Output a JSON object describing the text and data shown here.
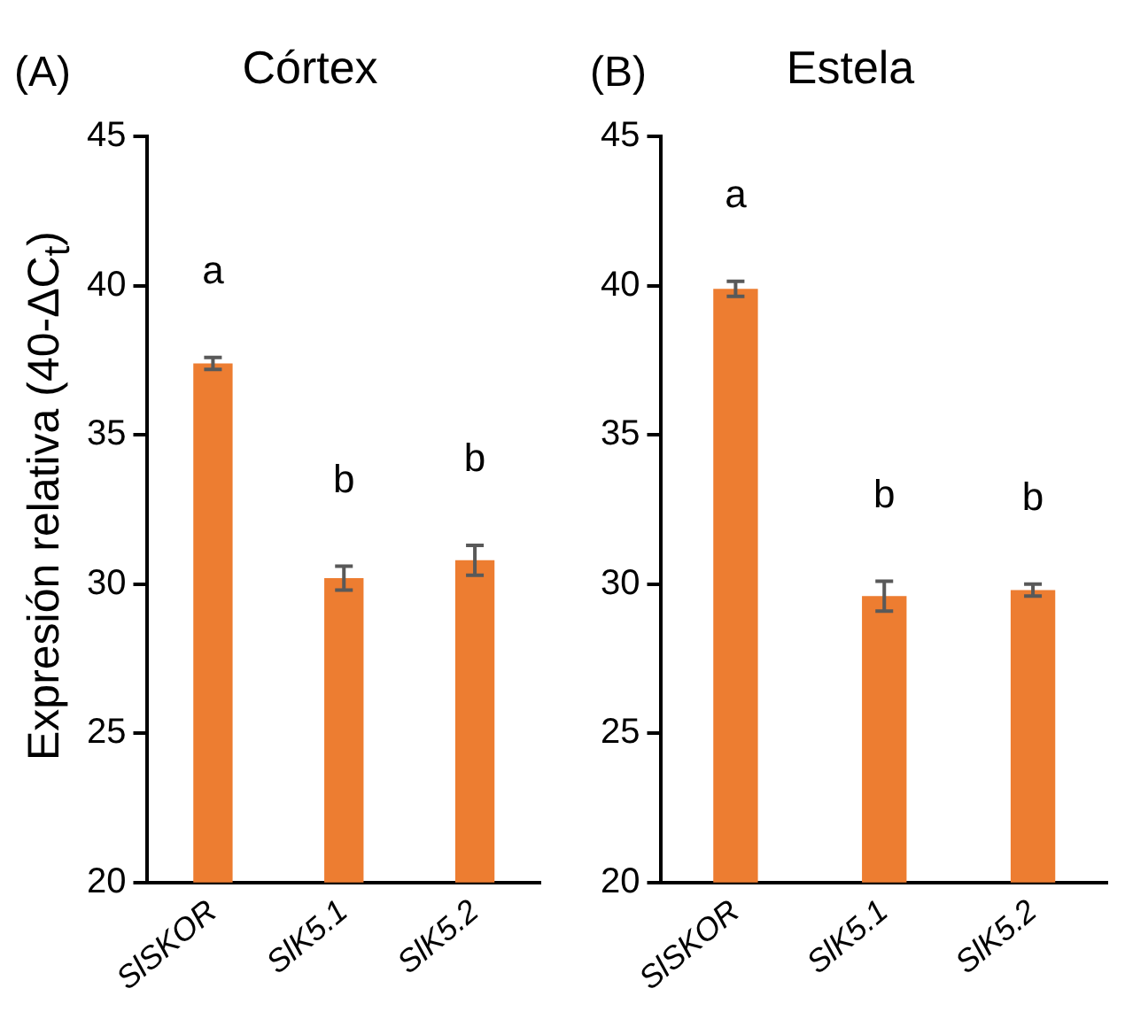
{
  "chart_data": [
    {
      "type": "bar",
      "title": "Córtex",
      "ylabel": "Expresión relativa (40-ΔC$_{t}$)",
      "categories": [
        "SlSKOR",
        "SlK5.1",
        "SlK5.2"
      ],
      "values": [
        37.4,
        30.2,
        30.8
      ],
      "errors": [
        0.2,
        0.4,
        0.5
      ],
      "color": "#ed7d31",
      "ylim": [
        20,
        45
      ],
      "yticks": [
        20,
        25,
        30,
        35,
        40,
        45
      ],
      "legend": false,
      "annotations": [
        "(A)",
        "a",
        "b",
        "b"
      ]
    },
    {
      "type": "bar",
      "title": "Estela",
      "categories": [
        "SlSKOR",
        "SlK5.1",
        "SlK5.2"
      ],
      "values": [
        39.9,
        29.6,
        29.8
      ],
      "errors": [
        0.25,
        0.5,
        0.2
      ],
      "color": "#ed7d31",
      "ylim": [
        20,
        45
      ],
      "yticks": [
        20,
        25,
        30,
        35,
        40,
        45
      ],
      "legend": false,
      "annotations": [
        "(B)",
        "a",
        "b",
        "b"
      ]
    }
  ]
}
